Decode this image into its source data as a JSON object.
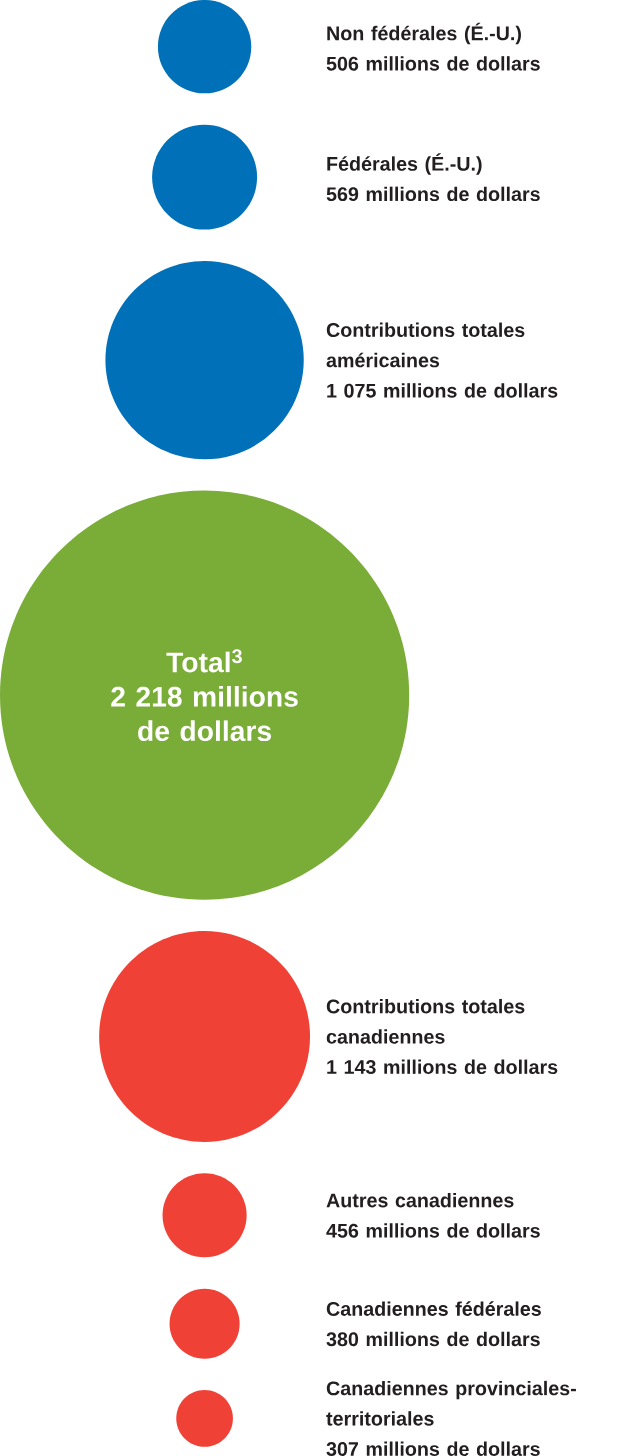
{
  "chart_data": {
    "type": "other",
    "categories": [
      "Non fédérales (É.-U.)",
      "Fédérales (É.-U.)",
      "Contributions totales américaines",
      "Total$^{3}$",
      "Contributions totales canadiennes",
      "Autres canadiennes",
      "Canadiennes fédérales",
      "Canadiennes provinciales-territoriales"
    ],
    "values": [
      506,
      569,
      1075,
      2218,
      1143,
      456,
      380,
      307
    ],
    "value_labels": [
      "506 millions de dollars",
      "569 millions de dollars",
      "1 075 millions de dollars",
      "2 218 millions de dollars",
      "1 143 millions de dollars",
      "456 millions de dollars",
      "380 millions de dollars",
      "307 millions de dollars"
    ],
    "colors": [
      "#0070b8",
      "#0070b8",
      "#0070b8",
      "#7aac38",
      "#ef4136",
      "#ef4136",
      "#ef4136",
      "#ef4136"
    ]
  }
}
